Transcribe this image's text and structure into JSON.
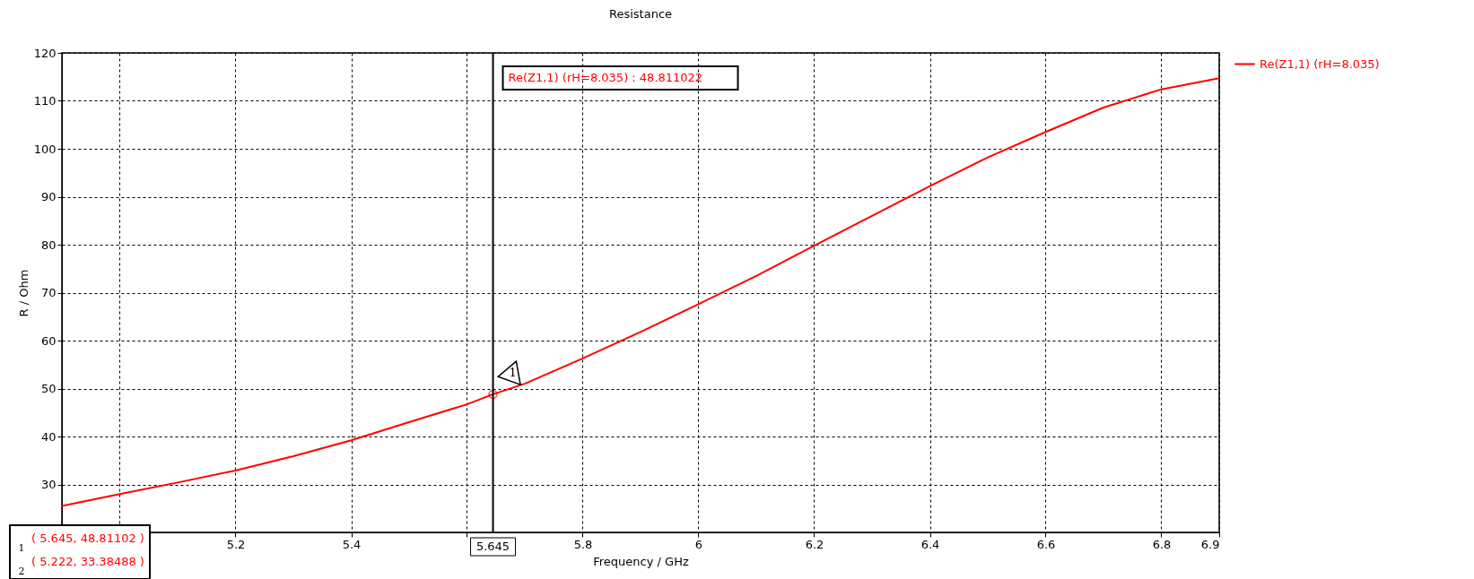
{
  "chart_data": {
    "type": "line",
    "title": "Resistance",
    "xlabel": "Frequency / GHz",
    "ylabel": "R / Ohm",
    "x": [
      4.9,
      5.0,
      5.1,
      5.2,
      5.3,
      5.4,
      5.5,
      5.6,
      5.645,
      5.7,
      5.8,
      5.9,
      6.0,
      6.1,
      6.2,
      6.3,
      6.4,
      6.5,
      6.6,
      6.7,
      6.8,
      6.9
    ],
    "series": [
      {
        "name": "Re(Z1,1) (rH=8.035)",
        "color": "#ff0000",
        "values": [
          25.5,
          28.0,
          30.4,
          32.9,
          35.9,
          39.2,
          43.0,
          46.7,
          48.8,
          51.0,
          56.3,
          61.8,
          67.6,
          73.5,
          79.8,
          86.0,
          92.2,
          98.2,
          103.5,
          108.6,
          112.4,
          114.7
        ]
      },
      {
        "type": "scatter",
        "marker": "circle",
        "color": "#ff0000",
        "x": [
          5.645
        ],
        "values": [
          48.8
        ]
      }
    ],
    "xlim": [
      4.9,
      6.9
    ],
    "xticks": [
      {
        "value": 5.0,
        "label": null
      },
      5.2,
      5.4,
      {
        "value": 5.6,
        "label": null
      },
      5.8,
      6,
      6.2,
      6.4,
      6.6,
      6.8,
      6.9
    ],
    "ylim": [
      20,
      120
    ],
    "yticks": [
      {
        "value": 20,
        "label": null
      },
      30,
      40,
      50,
      60,
      70,
      80,
      90,
      100,
      110,
      120
    ],
    "grid": true,
    "legend": "right",
    "marker": "none",
    "line_style": "solid",
    "ref_lines": [
      {
        "axis": "x",
        "value": 5.645,
        "label": "5.645",
        "color": "#000000"
      }
    ],
    "annotations": [
      "Re(Z1,1) (rH=8.035) : 48.811022",
      {
        "text": "1",
        "x": 5.645,
        "y": 48.8
      },
      "( 5.645, 48.81102 )",
      "( 5.222, 33.38488 )",
      "1",
      "2"
    ]
  }
}
